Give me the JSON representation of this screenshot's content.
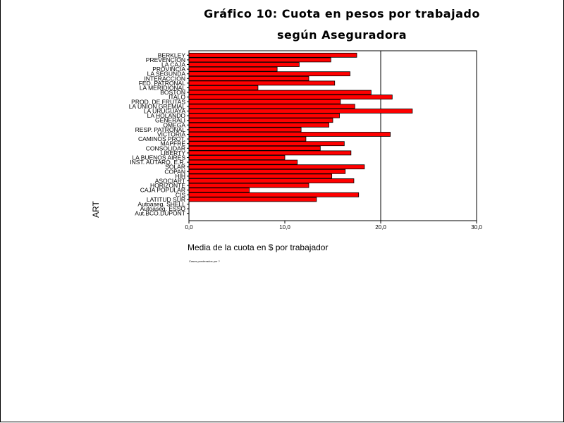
{
  "chart_data": {
    "type": "bar",
    "orientation": "horizontal",
    "title_lines": [
      "Gráfico 10: Cuota en pesos por trabajado",
      "según Aseguradora"
    ],
    "xlabel": "Media de la cuota en $ por trabajador",
    "ylabel": "ART",
    "footnote": "Casos ponderados por ?",
    "xlim": [
      0,
      30
    ],
    "xticks": [
      "0,0",
      "10,0",
      "20,0",
      "30,0"
    ],
    "grid": "vertical at 20",
    "bar_color": "#ff0000",
    "categories": [
      "BERKLEY",
      "PREVENCION",
      "LA CAJA",
      "PROVINCIA",
      "LA SEGUNDA",
      "INTERACCION",
      "FED. PATRONAL",
      "LA MERIDIONAL",
      "BOSTON",
      "ITALO",
      "PROD. DE FRUTAS",
      "LA UNION GREMIAL",
      "LA URUGUAYA",
      "LA HOLANDO",
      "GENERALI",
      "OMEGA",
      "RESP. PATRONAL",
      "VICTORIA",
      "CAMINOS PROT.",
      "MAPFRE",
      "CONSOLIDAR",
      "LIBERTY",
      "LA BUENOS AIRES",
      "INST. AUTARQ. E.R.",
      "SOLAR",
      "COPAN",
      "HIH",
      "ASOCIART",
      "HORIZONTE",
      "CAJA POPULAR",
      "CIS",
      "LATITUD SUR",
      "Autoaseg. SHELL",
      "Autoaseg. ESSO",
      "Aut.BCO.DUPONT"
    ],
    "values": [
      17.5,
      14.8,
      11.5,
      9.2,
      16.8,
      12.5,
      15.2,
      7.2,
      19.0,
      21.2,
      15.8,
      17.3,
      23.3,
      15.7,
      15.0,
      14.6,
      11.7,
      21.0,
      12.2,
      16.2,
      13.7,
      16.9,
      10.0,
      11.3,
      18.3,
      16.3,
      14.9,
      17.2,
      12.5,
      6.3,
      17.7,
      13.3,
      0,
      0,
      0
    ]
  }
}
